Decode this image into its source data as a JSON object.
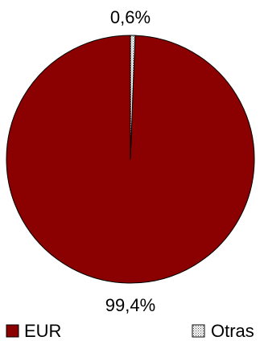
{
  "chart_data": {
    "type": "pie",
    "series": [
      {
        "name": "EUR",
        "value": 99.4,
        "label": "99,4%",
        "color": "#8b0000",
        "pattern": "solid"
      },
      {
        "name": "Otras",
        "value": 0.6,
        "label": "0,6%",
        "color": "#ffffff",
        "pattern": "dotted"
      }
    ],
    "start_angle_deg": 0,
    "direction": "counterclockwise",
    "legend_position": "bottom",
    "grid": false
  }
}
